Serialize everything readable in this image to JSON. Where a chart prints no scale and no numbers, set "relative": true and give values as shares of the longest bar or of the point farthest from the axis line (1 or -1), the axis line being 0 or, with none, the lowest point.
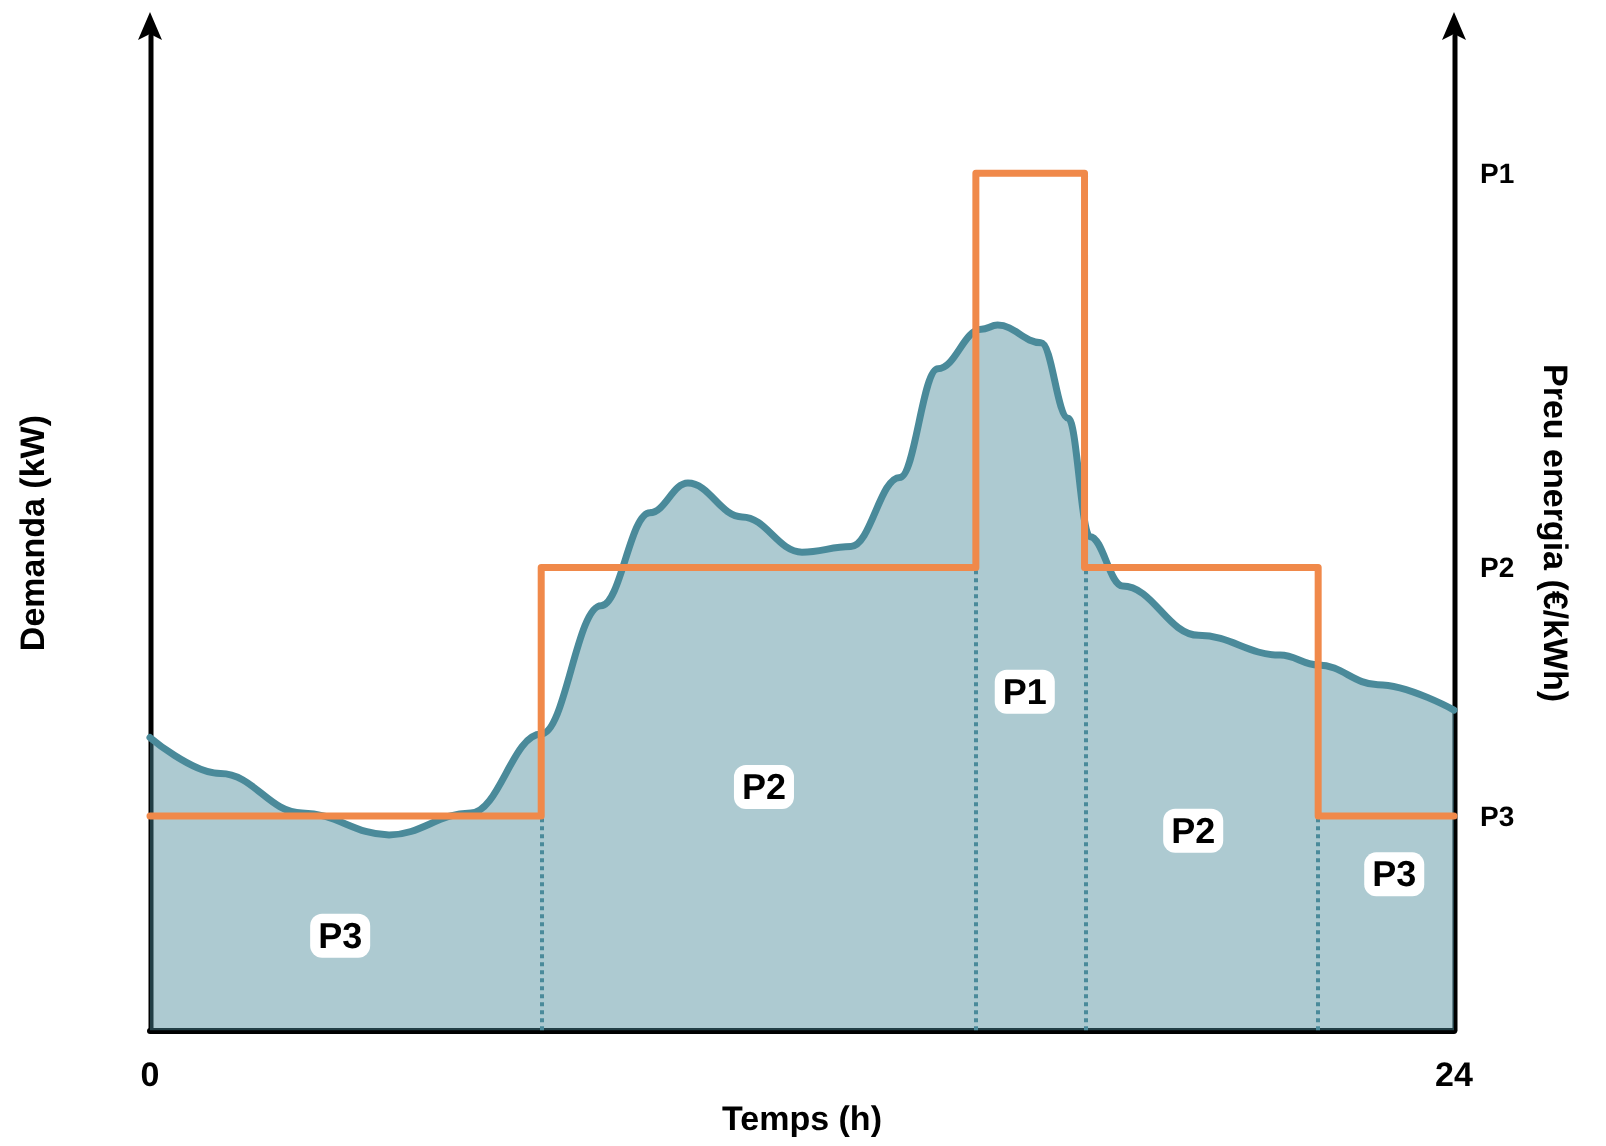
{
  "chart_data": {
    "type": "area",
    "relative": true,
    "xlabel": "Temps (h)",
    "ylabel": "Demanda (kW)",
    "y2label": "Preu energia (€/kWh)",
    "xlim": [
      0,
      24
    ],
    "xticks": [
      0,
      24
    ],
    "series": [
      {
        "color": "#4a8a9a",
        "x": [
          0,
          1.3,
          2.8,
          4.4,
          5.9,
          7.2,
          8.3,
          9.2,
          9.9,
          10.9,
          12,
          12.9,
          13.8,
          14.5,
          15.3,
          15.6,
          16.4,
          16.9,
          17.3,
          17.9,
          19.3,
          20.8,
          21.5,
          22.6,
          24
        ],
        "values": [
          0.415,
          0.364,
          0.308,
          0.277,
          0.308,
          0.42,
          0.602,
          0.734,
          0.776,
          0.728,
          0.678,
          0.686,
          0.784,
          0.938,
          0.994,
          1,
          0.975,
          0.868,
          0.7,
          0.63,
          0.56,
          0.532,
          0.518,
          0.49,
          0.454
        ]
      },
      {
        "type": "step",
        "axis": "y2",
        "color": "#f0894a",
        "x": [
          0,
          7.2,
          15.2,
          17.2,
          21.5,
          24
        ],
        "values": [
          0.25,
          0.54,
          1,
          0.54,
          0.25,
          0.25
        ]
      }
    ],
    "ref_lines": [
      {
        "axis": "x",
        "value": 7.2,
        "color": "#4a8a9a",
        "line_style": "dotted"
      },
      {
        "axis": "x",
        "value": 15.2,
        "color": "#4a8a9a",
        "line_style": "dotted"
      },
      {
        "axis": "x",
        "value": 17.2,
        "color": "#4a8a9a",
        "line_style": "dotted"
      },
      {
        "axis": "x",
        "value": 21.5,
        "color": "#4a8a9a",
        "line_style": "dotted"
      }
    ],
    "annotations": [
      {
        "text": "P3",
        "x": 3.5,
        "y": 0.134
      },
      {
        "text": "P2",
        "x": 11.3,
        "y": 0.345
      },
      {
        "text": "P1",
        "x": 16.1,
        "y": 0.48
      },
      {
        "text": "P2",
        "x": 19.2,
        "y": 0.283
      },
      {
        "text": "P3",
        "x": 22.9,
        "y": 0.221
      },
      "P1",
      "P2",
      "P3"
    ],
    "grid": false,
    "marker": "none",
    "line_style": "solid"
  }
}
